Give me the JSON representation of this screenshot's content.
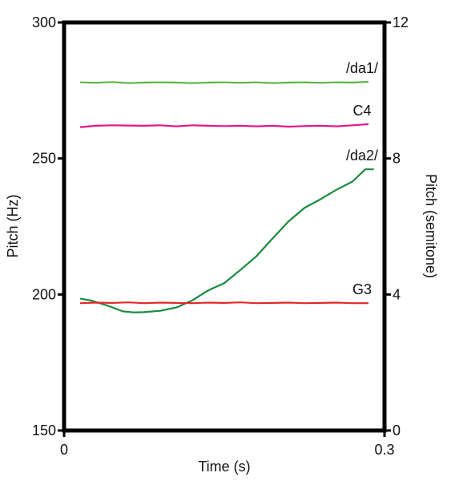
{
  "chart_data": {
    "type": "line",
    "title": "",
    "xlabel": "Time (s)",
    "ylabel": "Pitch (Hz)",
    "y2label": "Pitch (semitone)",
    "xlim": [
      0,
      0.3
    ],
    "ylim": [
      150,
      300
    ],
    "y2lim": [
      0,
      12
    ],
    "xticks": [
      "0",
      "0.3"
    ],
    "yticks": [
      "150",
      "200",
      "250",
      "300"
    ],
    "y2ticks": [
      "0",
      "4",
      "8",
      "12"
    ],
    "grid": false,
    "legend": "inline labels at right end of each series",
    "series": [
      {
        "name": "/da1/",
        "color": "#5ab446",
        "x": [
          0.015,
          0.03,
          0.045,
          0.06,
          0.075,
          0.09,
          0.105,
          0.12,
          0.135,
          0.15,
          0.165,
          0.18,
          0.195,
          0.21,
          0.225,
          0.24,
          0.255,
          0.27,
          0.285
        ],
        "y": [
          278,
          277.8,
          278.1,
          277.7,
          277.9,
          278,
          277.9,
          277.7,
          277.9,
          278,
          277.8,
          278,
          277.7,
          277.9,
          278,
          277.8,
          278,
          277.9,
          278.2
        ]
      },
      {
        "name": "C4",
        "color": "#e0188a",
        "x": [
          0.015,
          0.03,
          0.045,
          0.06,
          0.075,
          0.09,
          0.105,
          0.12,
          0.135,
          0.15,
          0.165,
          0.18,
          0.195,
          0.21,
          0.225,
          0.24,
          0.255,
          0.27,
          0.285
        ],
        "y": [
          261.5,
          262,
          262.2,
          262.1,
          262,
          262.2,
          261.8,
          262.2,
          262,
          261.9,
          262,
          261.8,
          262,
          261.7,
          261.9,
          262,
          261.8,
          262.2,
          262.6
        ]
      },
      {
        "name": "/da2/",
        "color": "#1a8a3e",
        "x": [
          0.015,
          0.025,
          0.04,
          0.055,
          0.065,
          0.075,
          0.09,
          0.105,
          0.12,
          0.135,
          0.15,
          0.165,
          0.18,
          0.195,
          0.21,
          0.225,
          0.24,
          0.255,
          0.27,
          0.282,
          0.29
        ],
        "y": [
          198.5,
          197.8,
          196,
          193.8,
          193.4,
          193.5,
          194,
          195.2,
          197.8,
          201.5,
          204.2,
          209,
          214,
          220.5,
          226.8,
          231.8,
          235,
          238.5,
          241.5,
          246,
          246
        ]
      },
      {
        "name": "G3",
        "color": "#e02a2a",
        "x": [
          0.015,
          0.03,
          0.045,
          0.06,
          0.075,
          0.09,
          0.105,
          0.12,
          0.135,
          0.15,
          0.165,
          0.18,
          0.195,
          0.21,
          0.225,
          0.24,
          0.255,
          0.27,
          0.285
        ],
        "y": [
          196.8,
          197,
          196.9,
          197.1,
          196.8,
          197,
          196.9,
          196.8,
          197,
          196.9,
          197.1,
          196.8,
          196.9,
          197,
          196.8,
          196.9,
          197,
          196.8,
          196.8
        ]
      }
    ]
  }
}
